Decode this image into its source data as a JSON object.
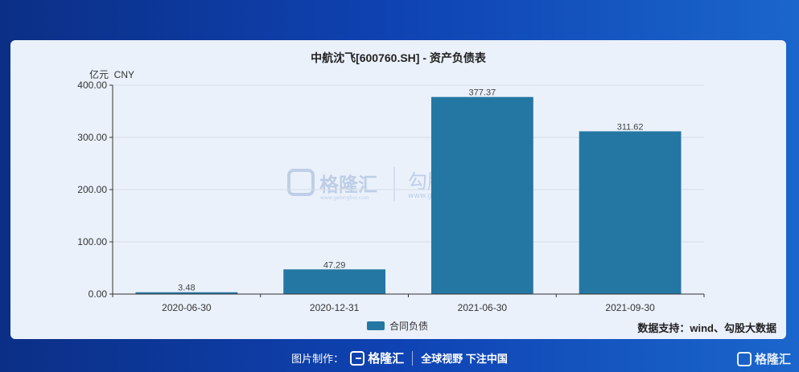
{
  "chart_data": {
    "type": "bar",
    "title": "中航沈飞[600760.SH] - 资产负债表",
    "unit_label": "亿元  CNY",
    "categories": [
      "2020-06-30",
      "2020-12-31",
      "2021-06-30",
      "2021-09-30"
    ],
    "series": [
      {
        "name": "合同负债",
        "values": [
          3.48,
          47.29,
          377.37,
          311.62
        ],
        "labels": [
          "3.48",
          "47.29",
          "377.37",
          "311.62"
        ],
        "color": "#2477a3"
      }
    ],
    "yticks": [
      "0.00",
      "100.00",
      "200.00",
      "300.00",
      "400.00"
    ],
    "ylim": [
      0,
      400
    ],
    "grid": true,
    "legend_position": "bottom-center"
  },
  "watermark": {
    "brand": "格隆汇",
    "brand_url": "www.gelonghui.com",
    "data_brand": "勾股大数据",
    "data_url": "www.gogudata.com"
  },
  "source_note": "数据支持：wind、勾股大数据",
  "footer": {
    "made_by": "图片制作：",
    "logo_text": "格隆汇",
    "slogan": "全球视野 下注中国"
  },
  "corner_logo": "格隆汇",
  "colors": {
    "background": "#0f43b3",
    "card": "#eaf1fb",
    "bar": "#2477a3",
    "axis": "#333333",
    "grid": "#d6dde6"
  }
}
